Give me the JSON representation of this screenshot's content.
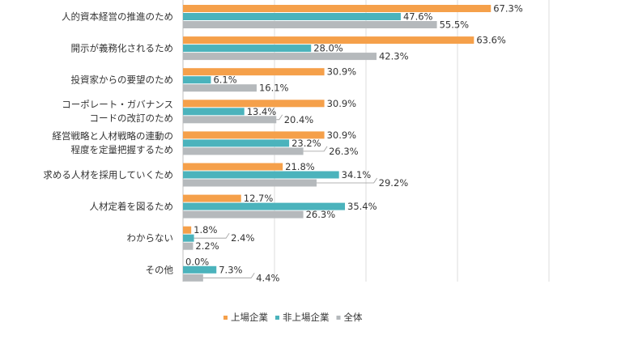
{
  "chart_data": {
    "type": "bar",
    "orientation": "horizontal",
    "title": "",
    "xlabel": "",
    "ylabel": "",
    "xlim": [
      0,
      80
    ],
    "grid": true,
    "legend_position": "bottom",
    "categories": [
      [
        "人的資本経営の推進のため"
      ],
      [
        "開示が義務化されるため"
      ],
      [
        "投資家からの要望のため"
      ],
      [
        "コーポレート・ガバナンス",
        "コードの改訂のため"
      ],
      [
        "経営戦略と人材戦略の連動の",
        "程度を定量把握するため"
      ],
      [
        "求める人材を採用していくため"
      ],
      [
        "人材定着を図るため"
      ],
      [
        "わからない"
      ],
      [
        "その他"
      ]
    ],
    "series": [
      {
        "name": "上場企業",
        "color": "#F5A04A",
        "values": [
          67.3,
          63.6,
          30.9,
          30.9,
          30.9,
          21.8,
          12.7,
          1.8,
          0.0
        ],
        "labels": [
          "67.3%",
          "63.6%",
          "30.9%",
          "30.9%",
          "30.9%",
          "21.8%",
          "12.7%",
          "1.8%",
          "0.0%"
        ]
      },
      {
        "name": "非上場企業",
        "color": "#4BB3BC",
        "values": [
          47.6,
          28.0,
          6.1,
          13.4,
          23.2,
          34.1,
          35.4,
          2.4,
          7.3
        ],
        "labels": [
          "47.6%",
          "28.0%",
          "6.1%",
          "13.4%",
          "23.2%",
          "34.1%",
          "35.4%",
          "2.4%",
          "7.3%"
        ]
      },
      {
        "name": "全体",
        "color": "#B5B9BC",
        "values": [
          55.5,
          42.3,
          16.1,
          20.4,
          26.3,
          29.2,
          26.3,
          2.2,
          4.4
        ],
        "labels": [
          "55.5%",
          "42.3%",
          "16.1%",
          "20.4%",
          "26.3%",
          "29.2%",
          "26.3%",
          "2.2%",
          "4.4%"
        ]
      }
    ]
  }
}
